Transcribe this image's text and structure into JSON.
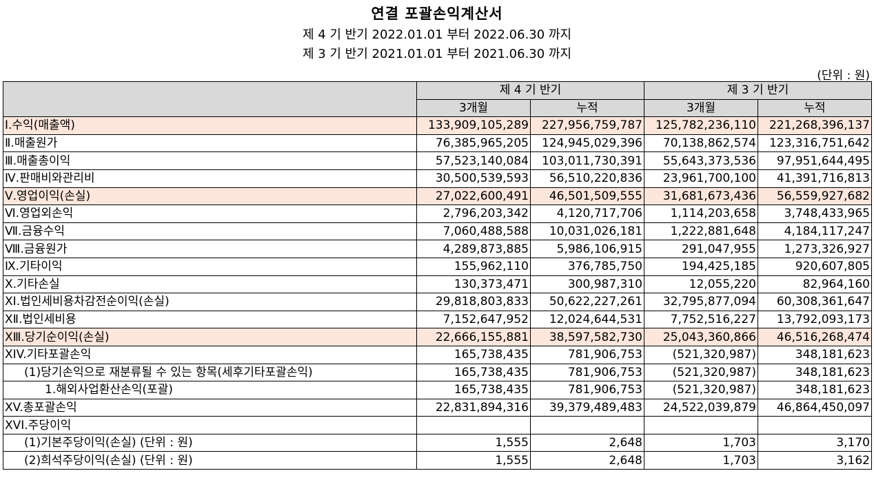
{
  "title": "연결 포괄손익계산서",
  "period_current": "제 4 기 반기 2022.01.01 부터 2022.06.30 까지",
  "period_prior": "제 3 기 반기 2021.01.01 부터 2021.06.30 까지",
  "unit": "(단위 : 원)",
  "header": {
    "current_period": "제 4 기 반기",
    "prior_period": "제 3 기 반기",
    "three_months": "3개월",
    "cumulative": "누적"
  },
  "rows": [
    {
      "label": "Ⅰ.수익(매출액)",
      "v": [
        "133,909,105,289",
        "227,956,759,787",
        "125,782,236,110",
        "221,268,396,137"
      ]
    },
    {
      "label": "Ⅱ.매출원가",
      "v": [
        "76,385,965,205",
        "124,945,029,396",
        "70,138,862,574",
        "123,316,751,642"
      ]
    },
    {
      "label": "Ⅲ.매출총이익",
      "v": [
        "57,523,140,084",
        "103,011,730,391",
        "55,643,373,536",
        "97,951,644,495"
      ]
    },
    {
      "label": "Ⅳ.판매비와관리비",
      "v": [
        "30,500,539,593",
        "56,510,220,836",
        "23,961,700,100",
        "41,391,716,813"
      ]
    },
    {
      "label": "Ⅴ.영업이익(손실)",
      "v": [
        "27,022,600,491",
        "46,501,509,555",
        "31,681,673,436",
        "56,559,927,682"
      ]
    },
    {
      "label": "Ⅵ.영업외손익",
      "v": [
        "2,796,203,342",
        "4,120,717,706",
        "1,114,203,658",
        "3,748,433,965"
      ]
    },
    {
      "label": "Ⅶ.금융수익",
      "v": [
        "7,060,488,588",
        "10,031,026,181",
        "1,222,881,648",
        "4,184,117,247"
      ]
    },
    {
      "label": "Ⅷ.금융원가",
      "v": [
        "4,289,873,885",
        "5,986,106,915",
        "291,047,955",
        "1,273,326,927"
      ]
    },
    {
      "label": "Ⅸ.기타이익",
      "v": [
        "155,962,110",
        "376,785,750",
        "194,425,185",
        "920,607,805"
      ]
    },
    {
      "label": "Ⅹ.기타손실",
      "v": [
        "130,373,471",
        "300,987,310",
        "12,055,220",
        "82,964,160"
      ]
    },
    {
      "label": "XI.법인세비용차감전순이익(손실)",
      "v": [
        "29,818,803,833",
        "50,622,227,261",
        "32,795,877,094",
        "60,308,361,647"
      ]
    },
    {
      "label": "XⅡ.법인세비용",
      "v": [
        "7,152,647,952",
        "12,024,644,531",
        "7,752,516,227",
        "13,792,093,173"
      ]
    },
    {
      "label": "XⅢ.당기순이익(손실)",
      "v": [
        "22,666,155,881",
        "38,597,582,730",
        "25,043,360,866",
        "46,516,268,474"
      ]
    },
    {
      "label": "XIV.기타포괄손익",
      "v": [
        "165,738,435",
        "781,906,753",
        "(521,320,987)",
        "348,181,623"
      ]
    },
    {
      "label": "(1)당기손익으로 재분류될 수 있는 항목(세후기타포괄손익)",
      "v": [
        "165,738,435",
        "781,906,753",
        "(521,320,987)",
        "348,181,623"
      ]
    },
    {
      "label": "1.해외사업환산손익(포괄)",
      "v": [
        "165,738,435",
        "781,906,753",
        "(521,320,987)",
        "348,181,623"
      ]
    },
    {
      "label": "XV.총포괄손익",
      "v": [
        "22,831,894,316",
        "39,379,489,483",
        "24,522,039,879",
        "46,864,450,097"
      ]
    },
    {
      "label": "XVI.주당이익",
      "v": [
        "",
        "",
        "",
        ""
      ]
    },
    {
      "label": "(1)기본주당이익(손실) (단위 : 원)",
      "v": [
        "1,555",
        "2,648",
        "1,703",
        "3,170"
      ]
    },
    {
      "label": "(2)희석주당이익(손실) (단위 : 원)",
      "v": [
        "1,555",
        "2,648",
        "1,703",
        "3,162"
      ]
    }
  ],
  "colors": {
    "highlight_row": "#fde6dc",
    "header_bg": "#d9d9d9"
  }
}
